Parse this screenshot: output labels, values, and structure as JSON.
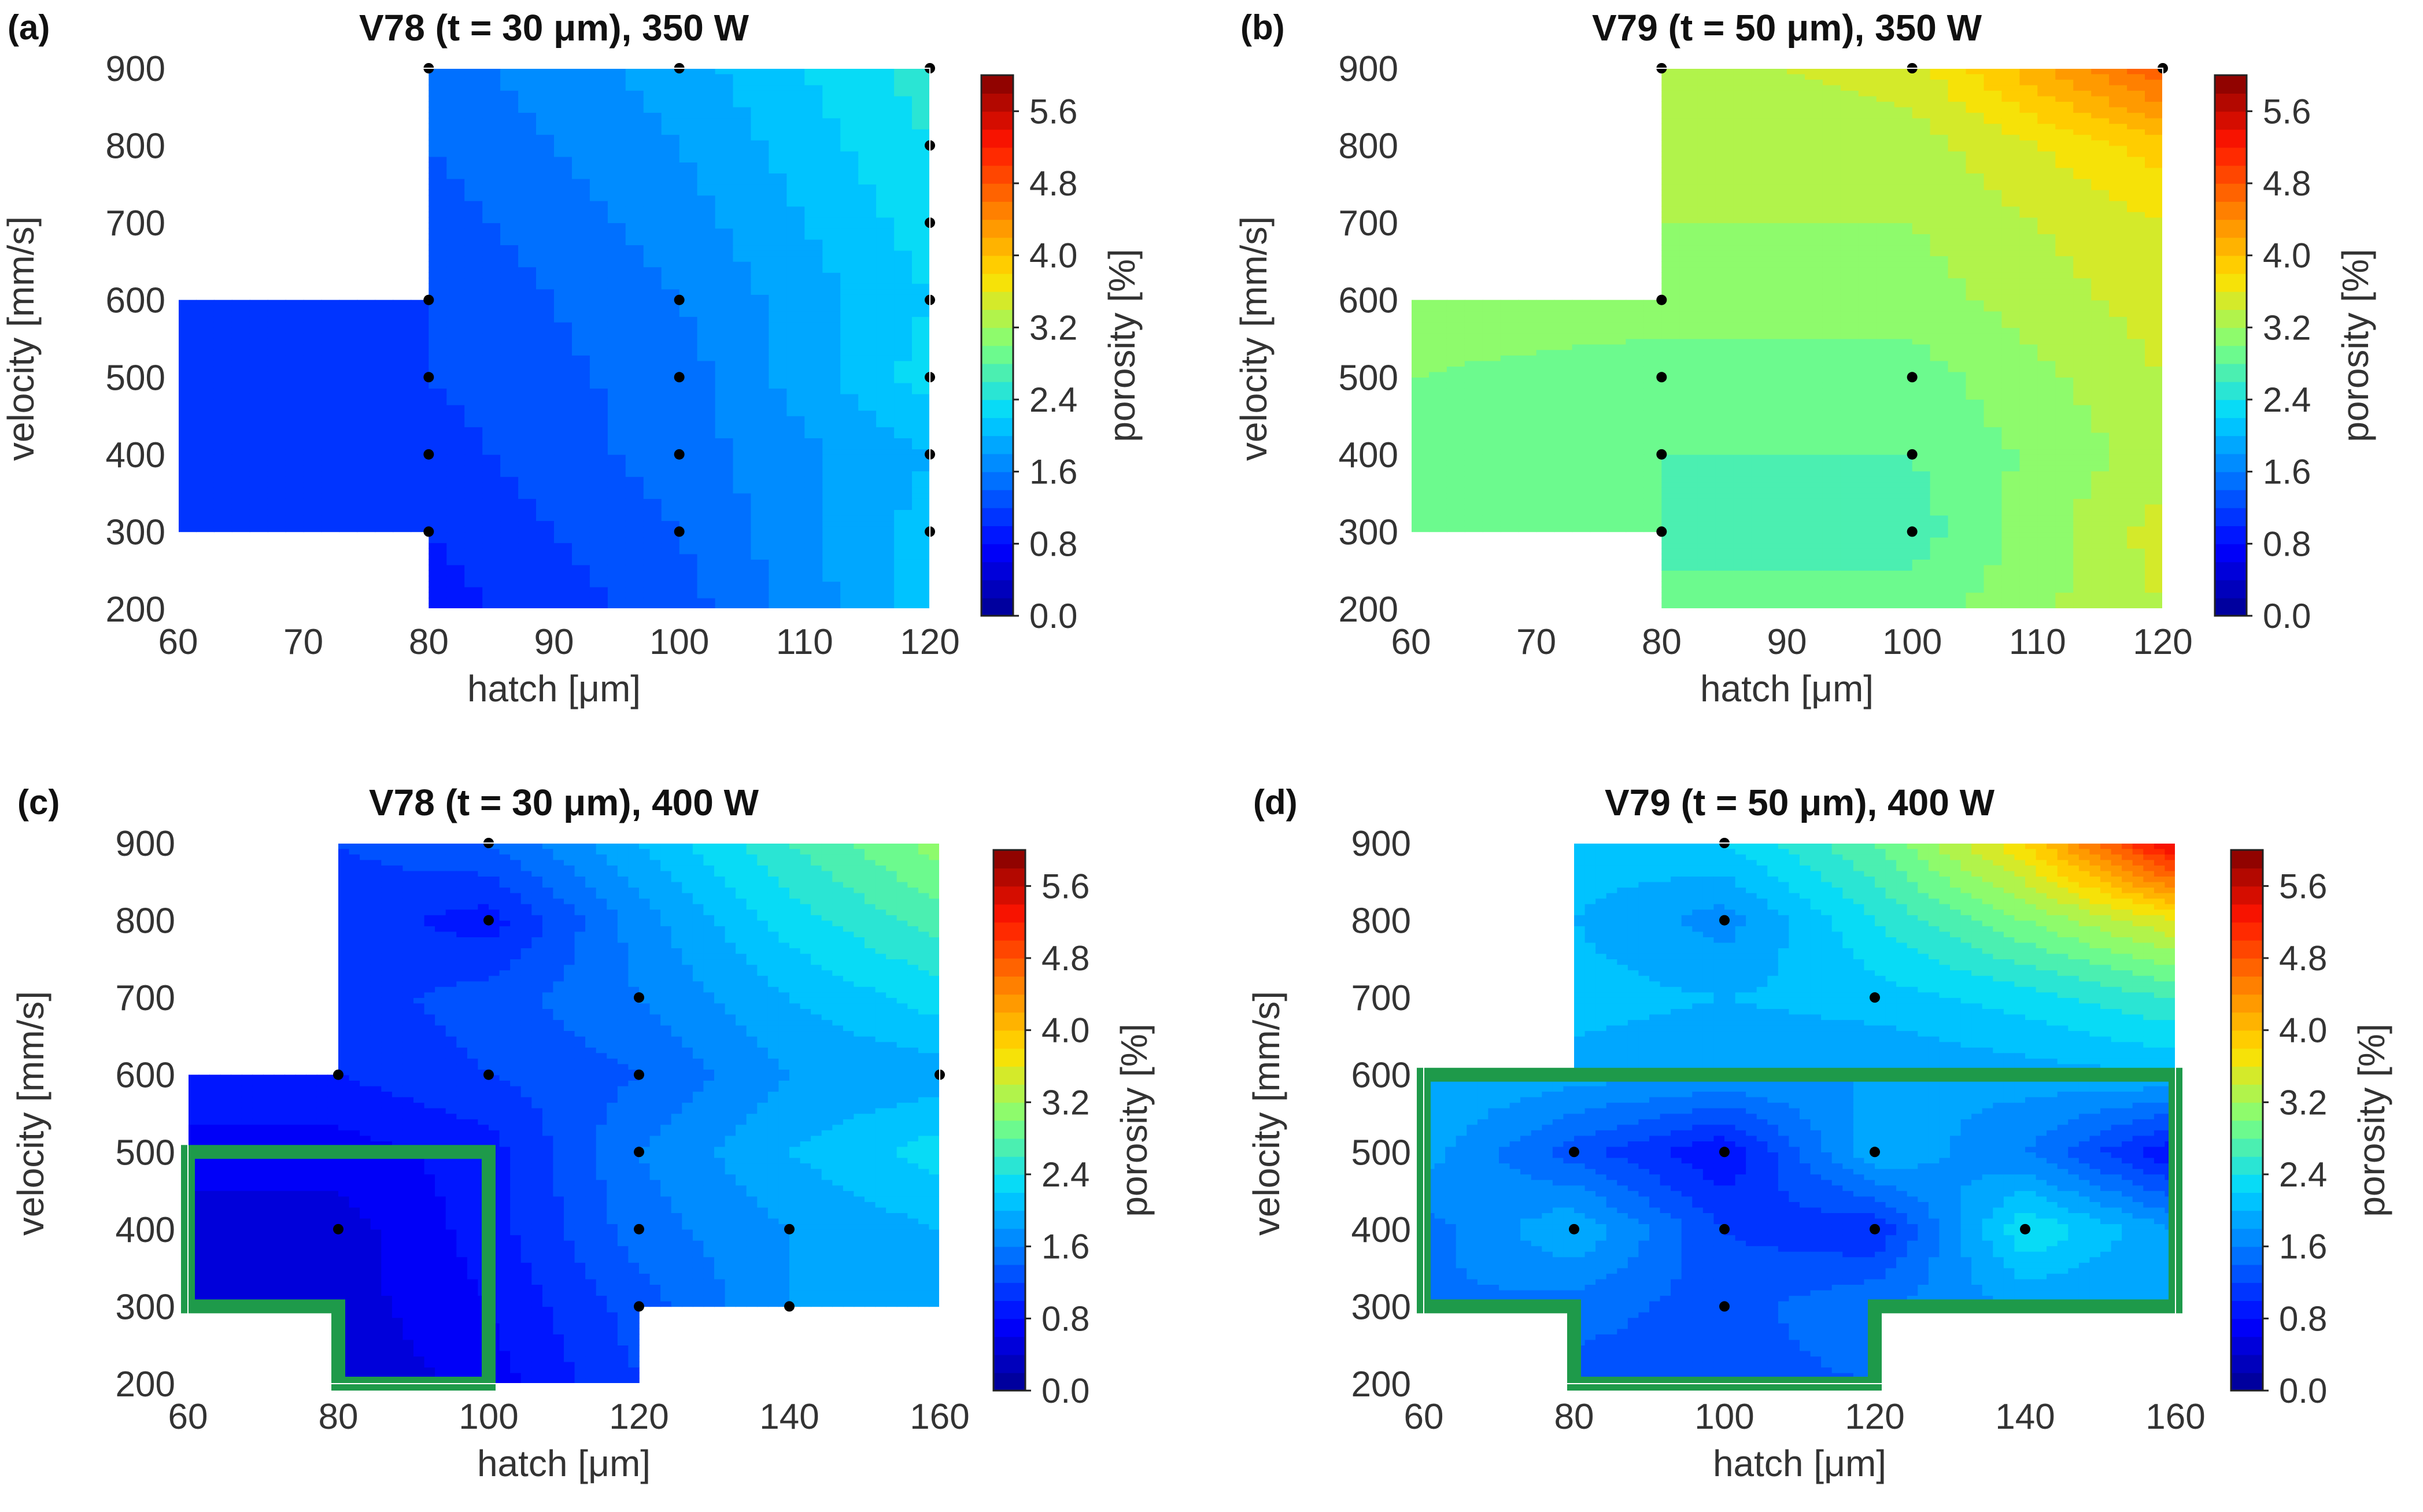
{
  "figure": {
    "colorbar_label": "porosity [%]",
    "colorbar_ticks": [
      "0.0",
      "0.8",
      "1.6",
      "2.4",
      "3.2",
      "4.0",
      "4.8",
      "5.6"
    ],
    "colorbar_range": [
      0,
      6.0
    ],
    "colorbar_colors": [
      "#00008f",
      "#0000ff",
      "#0070ff",
      "#00d8ff",
      "#7dff7d",
      "#ffe000",
      "#ff8000",
      "#ff1400",
      "#800000"
    ],
    "outline_color": "#1e9a4a"
  },
  "chart_data": [
    {
      "type": "heatmap",
      "label": "(a)",
      "title": "V78 (t = 30 μm), 350 W",
      "xlabel": "hatch [μm]",
      "ylabel": "velocity [mm/s]",
      "xlim": [
        60,
        120
      ],
      "ylim": [
        200,
        900
      ],
      "xticks": [
        "60",
        "70",
        "80",
        "90",
        "100",
        "110",
        "120"
      ],
      "yticks": [
        "200",
        "300",
        "400",
        "500",
        "600",
        "700",
        "800",
        "900"
      ],
      "x": [
        60,
        80,
        100,
        120
      ],
      "y": [
        200,
        300,
        400,
        500,
        600,
        700,
        800,
        900
      ],
      "z": [
        [
          null,
          0.9,
          1.3,
          2.1
        ],
        [
          1.0,
          1.0,
          1.4,
          2.1
        ],
        [
          1.0,
          1.1,
          1.5,
          2.0
        ],
        [
          1.1,
          1.2,
          1.5,
          2.3
        ],
        [
          1.1,
          1.2,
          1.6,
          2.2
        ],
        [
          null,
          1.3,
          1.7,
          2.3
        ],
        [
          null,
          1.4,
          1.8,
          2.4
        ],
        [
          null,
          1.5,
          1.9,
          2.5
        ]
      ],
      "measured_points": [
        [
          80,
          300
        ],
        [
          80,
          400
        ],
        [
          80,
          500
        ],
        [
          80,
          600
        ],
        [
          100,
          300
        ],
        [
          100,
          400
        ],
        [
          100,
          500
        ],
        [
          100,
          600
        ],
        [
          100,
          900
        ],
        [
          80,
          900
        ],
        [
          120,
          300
        ],
        [
          120,
          400
        ],
        [
          120,
          500
        ],
        [
          120,
          600
        ],
        [
          120,
          700
        ],
        [
          120,
          800
        ],
        [
          120,
          900
        ]
      ],
      "highlight": null
    },
    {
      "type": "heatmap",
      "label": "(b)",
      "title": "V79 (t = 50 μm), 350 W",
      "xlabel": "hatch [μm]",
      "ylabel": "velocity [mm/s]",
      "xlim": [
        60,
        120
      ],
      "ylim": [
        200,
        900
      ],
      "xticks": [
        "60",
        "70",
        "80",
        "90",
        "100",
        "110",
        "120"
      ],
      "yticks": [
        "200",
        "300",
        "400",
        "500",
        "600",
        "700",
        "800",
        "900"
      ],
      "x": [
        60,
        80,
        100,
        120
      ],
      "y": [
        200,
        300,
        400,
        500,
        600,
        700,
        800,
        900
      ],
      "z": [
        [
          null,
          2.8,
          2.9,
          3.4
        ],
        [
          2.8,
          2.8,
          2.7,
          3.5
        ],
        [
          2.9,
          2.8,
          2.8,
          3.3
        ],
        [
          3.0,
          2.9,
          2.9,
          3.4
        ],
        [
          3.1,
          3.1,
          3.1,
          3.5
        ],
        [
          null,
          3.2,
          3.2,
          3.6
        ],
        [
          null,
          3.2,
          3.3,
          3.9
        ],
        [
          null,
          3.3,
          3.5,
          4.8
        ]
      ],
      "measured_points": [
        [
          80,
          300
        ],
        [
          80,
          400
        ],
        [
          80,
          500
        ],
        [
          80,
          600
        ],
        [
          100,
          300
        ],
        [
          100,
          400
        ],
        [
          100,
          500
        ],
        [
          80,
          900
        ],
        [
          100,
          900
        ],
        [
          120,
          900
        ]
      ],
      "highlight": null
    },
    {
      "type": "heatmap",
      "label": "(c)",
      "title": "V78 (t = 30 μm), 400 W",
      "xlabel": "hatch [μm]",
      "ylabel": "velocity [mm/s]",
      "xlim": [
        60,
        160
      ],
      "ylim": [
        200,
        900
      ],
      "xticks": [
        "60",
        "80",
        "100",
        "120",
        "140",
        "160"
      ],
      "yticks": [
        "200",
        "300",
        "400",
        "500",
        "600",
        "700",
        "800",
        "900"
      ],
      "x": [
        60,
        80,
        100,
        120,
        140,
        160
      ],
      "y": [
        200,
        300,
        400,
        500,
        600,
        700,
        800,
        900
      ],
      "z": [
        [
          null,
          0.4,
          0.7,
          1.2,
          null,
          null
        ],
        [
          0.5,
          0.5,
          0.8,
          1.3,
          1.8,
          2.0
        ],
        [
          0.5,
          0.5,
          0.9,
          1.5,
          1.8,
          2.0
        ],
        [
          0.7,
          0.7,
          0.9,
          1.6,
          2.0,
          2.3
        ],
        [
          1.0,
          1.0,
          1.2,
          1.4,
          1.8,
          1.9
        ],
        [
          null,
          1.1,
          1.3,
          1.6,
          2.0,
          2.3
        ],
        [
          null,
          1.1,
          0.9,
          1.7,
          2.3,
          2.7
        ],
        [
          null,
          1.2,
          1.4,
          2.0,
          2.6,
          3.1
        ]
      ],
      "measured_points": [
        [
          80,
          400
        ],
        [
          80,
          500
        ],
        [
          80,
          600
        ],
        [
          100,
          600
        ],
        [
          100,
          800
        ],
        [
          100,
          900
        ],
        [
          120,
          300
        ],
        [
          120,
          400
        ],
        [
          120,
          500
        ],
        [
          120,
          600
        ],
        [
          120,
          700
        ],
        [
          140,
          300
        ],
        [
          140,
          400
        ],
        [
          160,
          600
        ]
      ],
      "highlight": [
        [
          60,
          300
        ],
        [
          60,
          500
        ],
        [
          100,
          500
        ],
        [
          100,
          200
        ],
        [
          80,
          200
        ],
        [
          80,
          300
        ]
      ]
    },
    {
      "type": "heatmap",
      "label": "(d)",
      "title": "V79 (t = 50 μm), 400 W",
      "xlabel": "hatch [μm]",
      "ylabel": "velocity [mm/s]",
      "xlim": [
        60,
        160
      ],
      "ylim": [
        200,
        900
      ],
      "xticks": [
        "60",
        "80",
        "100",
        "120",
        "140",
        "160"
      ],
      "yticks": [
        "200",
        "300",
        "400",
        "500",
        "600",
        "700",
        "800",
        "900"
      ],
      "x": [
        60,
        80,
        100,
        120,
        140,
        160
      ],
      "y": [
        200,
        300,
        400,
        500,
        600,
        700,
        800,
        900
      ],
      "z": [
        [
          null,
          1.3,
          1.3,
          1.4,
          null,
          null
        ],
        [
          1.6,
          1.5,
          1.3,
          1.6,
          1.8,
          1.8
        ],
        [
          1.5,
          2.0,
          1.2,
          1.0,
          2.4,
          1.8
        ],
        [
          1.9,
          1.3,
          0.8,
          2.0,
          1.6,
          0.8
        ],
        [
          2.0,
          1.9,
          1.8,
          1.8,
          1.9,
          2.0
        ],
        [
          null,
          2.1,
          2.0,
          2.1,
          2.3,
          2.6
        ],
        [
          null,
          2.0,
          1.7,
          2.4,
          3.0,
          3.6
        ],
        [
          null,
          2.1,
          2.2,
          2.8,
          3.8,
          5.5
        ]
      ],
      "measured_points": [
        [
          80,
          400
        ],
        [
          80,
          500
        ],
        [
          100,
          300
        ],
        [
          100,
          400
        ],
        [
          100,
          500
        ],
        [
          100,
          800
        ],
        [
          100,
          900
        ],
        [
          120,
          400
        ],
        [
          120,
          500
        ],
        [
          120,
          700
        ],
        [
          140,
          400
        ]
      ],
      "highlight": [
        [
          60,
          600
        ],
        [
          160,
          600
        ],
        [
          160,
          300
        ],
        [
          120,
          300
        ],
        [
          120,
          200
        ],
        [
          80,
          200
        ],
        [
          80,
          300
        ],
        [
          60,
          300
        ]
      ]
    }
  ]
}
